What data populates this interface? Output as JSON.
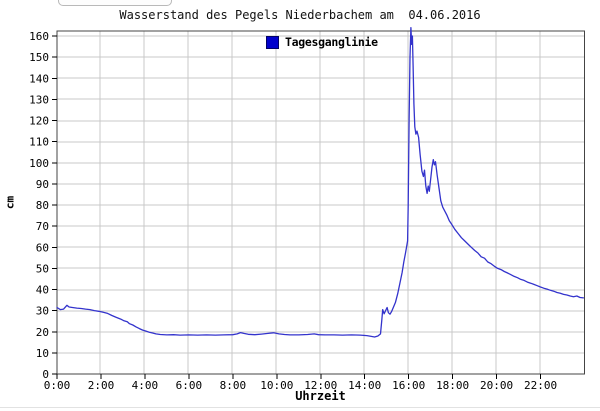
{
  "chart_data": {
    "type": "line",
    "title": "Wasserstand des Pegels Niederbachem am  04.06.2016",
    "xlabel": "Uhrzeit",
    "ylabel": "cm",
    "xlim": [
      0,
      24
    ],
    "ylim": [
      0,
      160
    ],
    "grid": true,
    "legend_position": "top-center-inside",
    "colors": {
      "line": "#3333cc",
      "legend_swatch": "#0000cc",
      "grid": "#c9c9c9",
      "border": "#444444",
      "tick": "#000000"
    },
    "y_ticks": [
      0,
      10,
      20,
      30,
      40,
      50,
      60,
      70,
      80,
      90,
      100,
      110,
      120,
      130,
      140,
      150,
      160
    ],
    "x_ticks": [
      {
        "h": 0,
        "label": "0:00"
      },
      {
        "h": 2,
        "label": "2:00"
      },
      {
        "h": 4,
        "label": "4:00"
      },
      {
        "h": 6,
        "label": "6:00"
      },
      {
        "h": 8,
        "label": "8:00"
      },
      {
        "h": 10,
        "label": "10:00"
      },
      {
        "h": 12,
        "label": "12:00"
      },
      {
        "h": 14,
        "label": "14:00"
      },
      {
        "h": 16,
        "label": "16:00"
      },
      {
        "h": 18,
        "label": "18:00"
      },
      {
        "h": 20,
        "label": "20:00"
      },
      {
        "h": 22,
        "label": "22:00"
      }
    ],
    "series": [
      {
        "name": "Tagesganglinie",
        "points": [
          [
            0,
            31.5
          ],
          [
            0.15,
            30.5
          ],
          [
            0.3,
            30.7
          ],
          [
            0.45,
            32.5
          ],
          [
            0.55,
            31.7
          ],
          [
            0.7,
            31.5
          ],
          [
            0.9,
            31.2
          ],
          [
            1.1,
            31
          ],
          [
            1.3,
            30.7
          ],
          [
            1.5,
            30.5
          ],
          [
            1.7,
            30
          ],
          [
            1.9,
            29.7
          ],
          [
            2.1,
            29.2
          ],
          [
            2.3,
            28.7
          ],
          [
            2.5,
            27.7
          ],
          [
            2.7,
            26.8
          ],
          [
            2.9,
            26
          ],
          [
            3.05,
            25.2
          ],
          [
            3.2,
            24.7
          ],
          [
            3.3,
            23.8
          ],
          [
            3.45,
            23.2
          ],
          [
            3.6,
            22.3
          ],
          [
            3.75,
            21.5
          ],
          [
            3.9,
            20.8
          ],
          [
            4.05,
            20.3
          ],
          [
            4.2,
            19.8
          ],
          [
            4.35,
            19.4
          ],
          [
            4.5,
            19
          ],
          [
            4.7,
            18.7
          ],
          [
            5,
            18.5
          ],
          [
            5.3,
            18.6
          ],
          [
            5.6,
            18.4
          ],
          [
            6,
            18.5
          ],
          [
            6.4,
            18.4
          ],
          [
            6.8,
            18.5
          ],
          [
            7.2,
            18.4
          ],
          [
            7.6,
            18.5
          ],
          [
            8,
            18.6
          ],
          [
            8.2,
            19
          ],
          [
            8.35,
            19.6
          ],
          [
            8.5,
            19.2
          ],
          [
            8.7,
            18.8
          ],
          [
            9,
            18.6
          ],
          [
            9.3,
            18.9
          ],
          [
            9.6,
            19.2
          ],
          [
            9.85,
            19.5
          ],
          [
            10.1,
            19
          ],
          [
            10.35,
            18.7
          ],
          [
            10.6,
            18.5
          ],
          [
            11,
            18.5
          ],
          [
            11.4,
            18.7
          ],
          [
            11.7,
            19
          ],
          [
            11.9,
            18.6
          ],
          [
            12.2,
            18.5
          ],
          [
            12.6,
            18.5
          ],
          [
            13,
            18.4
          ],
          [
            13.4,
            18.5
          ],
          [
            13.8,
            18.4
          ],
          [
            14.1,
            18.2
          ],
          [
            14.3,
            17.8
          ],
          [
            14.45,
            17.5
          ],
          [
            14.6,
            18
          ],
          [
            14.72,
            19
          ],
          [
            14.78,
            26
          ],
          [
            14.82,
            30.5
          ],
          [
            14.88,
            28.5
          ],
          [
            14.95,
            30
          ],
          [
            15.02,
            31.5
          ],
          [
            15.08,
            29
          ],
          [
            15.15,
            28.3
          ],
          [
            15.22,
            29.5
          ],
          [
            15.3,
            31.5
          ],
          [
            15.4,
            34
          ],
          [
            15.5,
            38
          ],
          [
            15.6,
            43
          ],
          [
            15.7,
            48
          ],
          [
            15.78,
            53
          ],
          [
            15.85,
            57
          ],
          [
            15.9,
            60
          ],
          [
            15.95,
            63
          ],
          [
            15.98,
            80
          ],
          [
            16.02,
            120
          ],
          [
            16.06,
            150
          ],
          [
            16.1,
            164
          ],
          [
            16.14,
            156
          ],
          [
            16.17,
            160
          ],
          [
            16.2,
            146
          ],
          [
            16.24,
            128
          ],
          [
            16.28,
            117
          ],
          [
            16.33,
            113.5
          ],
          [
            16.38,
            115
          ],
          [
            16.45,
            112
          ],
          [
            16.52,
            104
          ],
          [
            16.6,
            96
          ],
          [
            16.67,
            93.5
          ],
          [
            16.72,
            96.5
          ],
          [
            16.78,
            89
          ],
          [
            16.84,
            85.5
          ],
          [
            16.89,
            89
          ],
          [
            16.94,
            86.5
          ],
          [
            17,
            92
          ],
          [
            17.06,
            98
          ],
          [
            17.12,
            101.5
          ],
          [
            17.17,
            99
          ],
          [
            17.22,
            100.5
          ],
          [
            17.3,
            94
          ],
          [
            17.38,
            88
          ],
          [
            17.46,
            82
          ],
          [
            17.55,
            79
          ],
          [
            17.65,
            77
          ],
          [
            17.75,
            75
          ],
          [
            17.85,
            72.5
          ],
          [
            17.95,
            71
          ],
          [
            18.1,
            68.5
          ],
          [
            18.25,
            66.5
          ],
          [
            18.4,
            64.5
          ],
          [
            18.55,
            63
          ],
          [
            18.7,
            61.5
          ],
          [
            18.85,
            60
          ],
          [
            19,
            58.5
          ],
          [
            19.15,
            57.3
          ],
          [
            19.3,
            55.5
          ],
          [
            19.45,
            54.8
          ],
          [
            19.6,
            53
          ],
          [
            19.75,
            52.2
          ],
          [
            19.9,
            51
          ],
          [
            20.05,
            50
          ],
          [
            20.2,
            49.4
          ],
          [
            20.35,
            48.5
          ],
          [
            20.5,
            47.8
          ],
          [
            20.65,
            47
          ],
          [
            20.8,
            46.2
          ],
          [
            20.95,
            45.6
          ],
          [
            21.1,
            44.8
          ],
          [
            21.25,
            44.3
          ],
          [
            21.4,
            43.5
          ],
          [
            21.55,
            43
          ],
          [
            21.7,
            42.4
          ],
          [
            21.85,
            41.8
          ],
          [
            22,
            41.2
          ],
          [
            22.15,
            40.6
          ],
          [
            22.3,
            40.2
          ],
          [
            22.45,
            39.6
          ],
          [
            22.6,
            39.2
          ],
          [
            22.75,
            38.6
          ],
          [
            22.9,
            38.2
          ],
          [
            23.05,
            37.7
          ],
          [
            23.2,
            37.4
          ],
          [
            23.35,
            36.9
          ],
          [
            23.5,
            36.6
          ],
          [
            23.65,
            36.9
          ],
          [
            23.8,
            36.2
          ],
          [
            23.95,
            36
          ]
        ]
      }
    ]
  },
  "legend": {
    "label": "Tagesganglinie"
  }
}
